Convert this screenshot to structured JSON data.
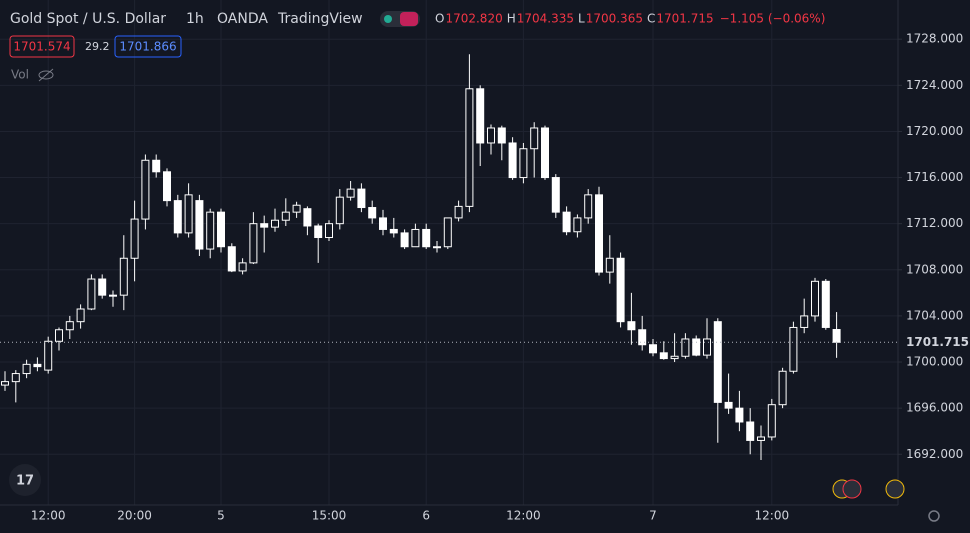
{
  "header": {
    "symbol": "Gold Spot / U.S. Dollar",
    "interval": "1h",
    "exchange": "OANDA",
    "source": "TradingView",
    "ohlc": [
      {
        "label": "O",
        "value": "1702.820"
      },
      {
        "label": "H",
        "value": "1704.335"
      },
      {
        "label": "L",
        "value": "1700.365"
      },
      {
        "label": "C",
        "value": "1701.715"
      }
    ],
    "change": "−1.105 (−0.06%)",
    "bid": "1701.574",
    "spread": "29.2",
    "ask": "1701.866",
    "volume_label": "Vol"
  },
  "chart_data": {
    "type": "candlestick",
    "categories": [
      null,
      null,
      null,
      null,
      "12:00",
      null,
      null,
      null,
      null,
      null,
      null,
      null,
      "20:00",
      null,
      null,
      null,
      null,
      null,
      null,
      null,
      "5",
      null,
      null,
      null,
      null,
      null,
      null,
      null,
      null,
      null,
      "15:00",
      null,
      null,
      null,
      null,
      null,
      null,
      null,
      null,
      "6",
      null,
      null,
      null,
      null,
      null,
      null,
      null,
      null,
      "12:00",
      null,
      null,
      null,
      null,
      null,
      null,
      null,
      null,
      null,
      null,
      null,
      "7",
      null,
      null,
      null,
      null,
      null,
      null,
      null,
      null,
      null,
      null,
      "12:00",
      null,
      null,
      null,
      null,
      null,
      null
    ],
    "open": [
      1698.0,
      1698.3,
      1699.0,
      1699.8,
      1699.3,
      1701.8,
      1702.8,
      1703.5,
      1704.6,
      1707.2,
      1705.8,
      1705.8,
      1709.0,
      1712.4,
      1717.5,
      1716.5,
      1714.0,
      1711.2,
      1714.0,
      1709.8,
      1713.0,
      1710.0,
      1707.9,
      1708.6,
      1712.0,
      1711.7,
      1712.3,
      1713.0,
      1713.3,
      1711.8,
      1710.8,
      1712.0,
      1714.3,
      1715.0,
      1713.4,
      1712.5,
      1711.5,
      1711.2,
      1710.0,
      1711.5,
      1710.0,
      1710.0,
      1712.5,
      1713.5,
      1723.7,
      1719.0,
      1720.3,
      1719.0,
      1716.0,
      1718.5,
      1720.3,
      1716.0,
      1713.0,
      1711.3,
      1712.5,
      1714.5,
      1707.8,
      1709.0,
      1703.5,
      1702.8,
      1701.5,
      1700.8,
      1700.3,
      1700.5,
      1702.0,
      1700.6,
      1703.5,
      1696.5,
      1696.0,
      1694.8,
      1693.2,
      1693.5,
      1696.3,
      1699.2,
      1703.0,
      1704.0,
      1707.0,
      1702.82
    ],
    "high": [
      1699.2,
      1699.3,
      1700.2,
      1700.4,
      1702.2,
      1703.0,
      1704.0,
      1705.0,
      1707.6,
      1707.6,
      1706.2,
      1711.0,
      1714.0,
      1718.0,
      1718.0,
      1716.8,
      1714.5,
      1715.5,
      1714.5,
      1713.3,
      1713.3,
      1710.3,
      1709.0,
      1713.0,
      1712.7,
      1713.3,
      1714.2,
      1713.9,
      1713.5,
      1712.0,
      1712.3,
      1715.0,
      1715.7,
      1715.5,
      1714.0,
      1713.2,
      1712.5,
      1711.5,
      1712.0,
      1712.0,
      1710.5,
      1712.5,
      1714.0,
      1726.7,
      1724.0,
      1720.6,
      1720.5,
      1719.5,
      1719.0,
      1720.8,
      1720.5,
      1716.3,
      1713.5,
      1712.8,
      1715.0,
      1715.2,
      1711.0,
      1709.5,
      1706.0,
      1704.0,
      1702.0,
      1701.8,
      1702.5,
      1702.5,
      1702.3,
      1703.8,
      1703.8,
      1699.0,
      1697.5,
      1696.0,
      1694.5,
      1696.8,
      1699.5,
      1703.5,
      1705.5,
      1707.3,
      1707.2,
      1704.335
    ],
    "low": [
      1697.5,
      1696.5,
      1698.6,
      1699.2,
      1699.0,
      1701.0,
      1702.0,
      1702.9,
      1704.5,
      1705.5,
      1704.8,
      1704.5,
      1707.0,
      1711.5,
      1716.0,
      1713.5,
      1710.8,
      1710.8,
      1709.2,
      1709.0,
      1709.5,
      1707.8,
      1707.6,
      1708.5,
      1709.5,
      1711.3,
      1711.8,
      1712.5,
      1711.0,
      1708.6,
      1710.5,
      1711.5,
      1714.0,
      1713.0,
      1712.0,
      1711.0,
      1710.8,
      1709.8,
      1710.0,
      1709.8,
      1709.5,
      1709.8,
      1712.2,
      1713.0,
      1717.0,
      1718.0,
      1717.5,
      1715.8,
      1715.5,
      1716.0,
      1715.8,
      1712.5,
      1711.0,
      1710.8,
      1712.0,
      1707.5,
      1706.8,
      1703.0,
      1701.5,
      1701.0,
      1700.5,
      1700.2,
      1700.0,
      1700.3,
      1700.5,
      1700.3,
      1693.0,
      1695.5,
      1694.0,
      1692.0,
      1691.5,
      1693.2,
      1696.0,
      1699.0,
      1702.5,
      1703.5,
      1702.8,
      1700.365
    ],
    "close": [
      1698.3,
      1699.0,
      1699.8,
      1699.6,
      1701.8,
      1702.8,
      1703.5,
      1704.6,
      1707.2,
      1705.8,
      1705.8,
      1709.0,
      1712.4,
      1717.5,
      1716.5,
      1714.0,
      1711.2,
      1714.5,
      1709.8,
      1713.0,
      1710.0,
      1707.9,
      1708.6,
      1712.0,
      1711.7,
      1712.3,
      1713.0,
      1713.6,
      1711.8,
      1710.8,
      1712.0,
      1714.3,
      1715.0,
      1713.4,
      1712.5,
      1711.5,
      1711.2,
      1710.0,
      1711.5,
      1710.0,
      1710.0,
      1712.5,
      1713.5,
      1723.7,
      1719.0,
      1720.3,
      1719.0,
      1716.0,
      1718.5,
      1720.3,
      1716.0,
      1713.0,
      1711.3,
      1712.5,
      1714.5,
      1707.8,
      1709.0,
      1703.5,
      1702.8,
      1701.5,
      1700.8,
      1700.3,
      1700.5,
      1702.0,
      1700.6,
      1702.0,
      1696.5,
      1696.0,
      1694.8,
      1693.2,
      1693.5,
      1696.3,
      1699.2,
      1703.0,
      1704.0,
      1707.0,
      1703.0,
      1701.715
    ],
    "color": "#ffffff",
    "ylim": [
      1687.6,
      1731.4
    ],
    "yticks": [
      {
        "value": 1692,
        "label": "1692.000"
      },
      {
        "value": 1696,
        "label": "1696.000"
      },
      {
        "value": 1700,
        "label": "1700.000"
      },
      {
        "value": 1704,
        "label": "1704.000"
      },
      {
        "value": 1708,
        "label": "1708.000"
      },
      {
        "value": 1712,
        "label": "1712.000"
      },
      {
        "value": 1716,
        "label": "1716.000"
      },
      {
        "value": 1720,
        "label": "1720.000"
      },
      {
        "value": 1724,
        "label": "1724.000"
      },
      {
        "value": 1728,
        "label": "1728.000"
      }
    ],
    "last_price": {
      "value": 1701.715,
      "label": "1701.715"
    },
    "grid": true
  }
}
